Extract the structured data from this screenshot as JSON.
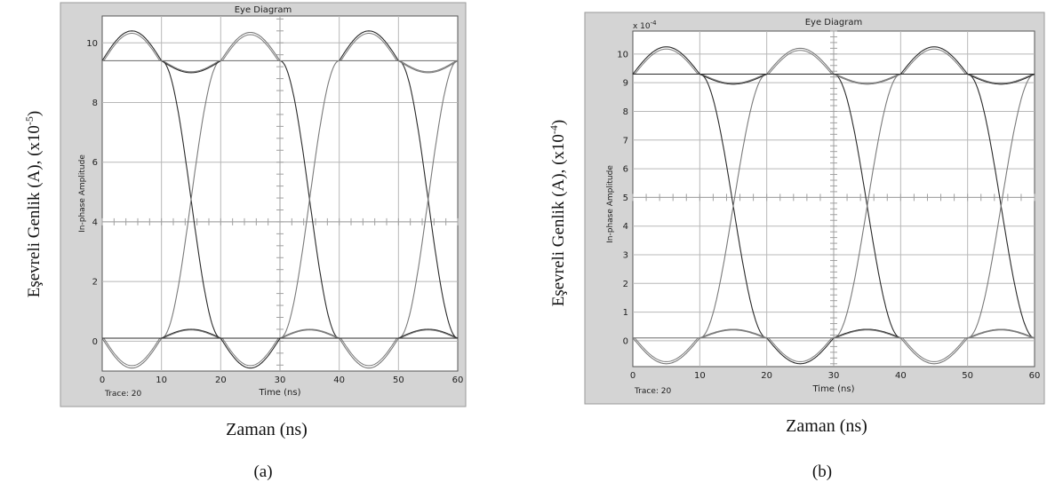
{
  "figure": {
    "panels": [
      {
        "caption": "(a)",
        "outer_ylabel": "Eşevreli Genlik (A), (x10",
        "outer_ylabel_exp": "-5",
        "outer_ylabel_tail": ")",
        "outer_xlabel": "Zaman (ns)"
      },
      {
        "caption": "(b)",
        "outer_ylabel": "Eşevreli Genlik (A), (x10",
        "outer_ylabel_exp": "-4",
        "outer_ylabel_tail": ")",
        "outer_xlabel": "Zaman (ns)"
      }
    ]
  },
  "colors": {
    "window_bg": "#d4d4d4",
    "plot_bg": "#ffffff",
    "grid": "#b8b8b8",
    "trace_dark": "#2a2a2a",
    "trace_light": "#7a7a7a"
  },
  "chart_data": [
    {
      "type": "line",
      "title": "Eye Diagram",
      "xlabel": "Time (ns)",
      "ylabel": "In-phase Amplitude",
      "trace_label": "Trace: 20",
      "multiplier_label": "",
      "multiplier_exp": "",
      "xlim": [
        0,
        60
      ],
      "ylim": [
        -1,
        10.9
      ],
      "xticks": [
        0,
        10,
        20,
        30,
        40,
        50,
        60
      ],
      "yticks": [
        0,
        2,
        4,
        6,
        8,
        10
      ],
      "grid": true,
      "center_axis_y": 4,
      "levels": {
        "high": 9.4,
        "low": 0.1,
        "overshoot_high": 10.4,
        "overshoot_low": -0.9,
        "crossing": 4.7
      },
      "bit_period_ns": 10,
      "crossings_ns": [
        15,
        35,
        55
      ],
      "series": [
        {
          "kind": "transition",
          "y_start": 9.4,
          "y_end": 0.1,
          "x_start": 10,
          "x_end": 20
        },
        {
          "kind": "transition",
          "y_start": 0.1,
          "y_end": 9.4,
          "x_start": 10,
          "x_end": 20
        },
        {
          "kind": "transition",
          "y_start": 9.4,
          "y_end": 0.1,
          "x_start": 30,
          "x_end": 40
        },
        {
          "kind": "transition",
          "y_start": 0.1,
          "y_end": 9.4,
          "x_start": 30,
          "x_end": 40
        },
        {
          "kind": "transition",
          "y_start": 9.4,
          "y_end": 0.1,
          "x_start": 50,
          "x_end": 60
        },
        {
          "kind": "transition",
          "y_start": 0.1,
          "y_end": 9.4,
          "x_start": 50,
          "x_end": 60
        },
        {
          "kind": "overshoot",
          "level": 9.4,
          "peak": 10.4,
          "x_start": 0,
          "x_end": 10
        },
        {
          "kind": "overshoot",
          "level": 9.4,
          "peak": 10.35,
          "x_start": 20,
          "x_end": 30
        },
        {
          "kind": "overshoot",
          "level": 9.4,
          "peak": 10.4,
          "x_start": 40,
          "x_end": 50
        },
        {
          "kind": "overshoot",
          "level": 0.1,
          "peak": -0.9,
          "x_start": 0,
          "x_end": 10
        },
        {
          "kind": "overshoot",
          "level": 0.1,
          "peak": -0.9,
          "x_start": 20,
          "x_end": 30
        },
        {
          "kind": "overshoot",
          "level": 0.1,
          "peak": -0.9,
          "x_start": 40,
          "x_end": 50
        },
        {
          "kind": "ripple",
          "level": 9.4,
          "peak": 9.0,
          "x_start": 10,
          "x_end": 20
        },
        {
          "kind": "ripple",
          "level": 9.4,
          "peak": 9.0,
          "x_start": 50,
          "x_end": 60
        },
        {
          "kind": "ripple",
          "level": 0.1,
          "peak": 0.4,
          "x_start": 10,
          "x_end": 20
        },
        {
          "kind": "ripple",
          "level": 0.1,
          "peak": 0.4,
          "x_start": 30,
          "x_end": 40
        },
        {
          "kind": "ripple",
          "level": 0.1,
          "peak": 0.4,
          "x_start": 50,
          "x_end": 60
        },
        {
          "kind": "flat",
          "level": 9.4,
          "x_start": 0,
          "x_end": 60
        },
        {
          "kind": "flat",
          "level": 0.1,
          "x_start": 0,
          "x_end": 60
        }
      ]
    },
    {
      "type": "line",
      "title": "Eye Diagram",
      "xlabel": "Time (ns)",
      "ylabel": "In-phase Amplitude",
      "trace_label": "Trace: 20",
      "multiplier_label": "x 10",
      "multiplier_exp": "-4",
      "xlim": [
        0,
        60
      ],
      "ylim": [
        -0.9,
        10.8
      ],
      "xticks": [
        0,
        10,
        20,
        30,
        40,
        50,
        60
      ],
      "yticks": [
        0,
        1,
        2,
        3,
        4,
        5,
        6,
        7,
        8,
        9,
        10
      ],
      "grid": true,
      "center_axis_y": 5,
      "levels": {
        "high": 9.3,
        "low": 0.1,
        "overshoot_high": 10.25,
        "overshoot_low": -0.8,
        "crossing": 4.7
      },
      "bit_period_ns": 10,
      "crossings_ns": [
        15,
        35,
        55
      ],
      "series": [
        {
          "kind": "transition",
          "y_start": 9.3,
          "y_end": 0.1,
          "x_start": 10,
          "x_end": 20
        },
        {
          "kind": "transition",
          "y_start": 0.1,
          "y_end": 9.3,
          "x_start": 10,
          "x_end": 20
        },
        {
          "kind": "transition",
          "y_start": 9.3,
          "y_end": 0.1,
          "x_start": 30,
          "x_end": 40
        },
        {
          "kind": "transition",
          "y_start": 0.1,
          "y_end": 9.3,
          "x_start": 30,
          "x_end": 40
        },
        {
          "kind": "transition",
          "y_start": 9.3,
          "y_end": 0.1,
          "x_start": 50,
          "x_end": 60
        },
        {
          "kind": "transition",
          "y_start": 0.1,
          "y_end": 9.3,
          "x_start": 50,
          "x_end": 60
        },
        {
          "kind": "overshoot",
          "level": 9.3,
          "peak": 10.25,
          "x_start": 0,
          "x_end": 10
        },
        {
          "kind": "overshoot",
          "level": 9.3,
          "peak": 10.2,
          "x_start": 20,
          "x_end": 30
        },
        {
          "kind": "overshoot",
          "level": 9.3,
          "peak": 10.25,
          "x_start": 40,
          "x_end": 50
        },
        {
          "kind": "overshoot",
          "level": 0.1,
          "peak": -0.8,
          "x_start": 0,
          "x_end": 10
        },
        {
          "kind": "overshoot",
          "level": 0.1,
          "peak": -0.8,
          "x_start": 20,
          "x_end": 30
        },
        {
          "kind": "overshoot",
          "level": 0.1,
          "peak": -0.8,
          "x_start": 40,
          "x_end": 50
        },
        {
          "kind": "ripple",
          "level": 9.3,
          "peak": 8.95,
          "x_start": 10,
          "x_end": 20
        },
        {
          "kind": "ripple",
          "level": 9.3,
          "peak": 8.95,
          "x_start": 30,
          "x_end": 40
        },
        {
          "kind": "ripple",
          "level": 9.3,
          "peak": 8.95,
          "x_start": 50,
          "x_end": 60
        },
        {
          "kind": "ripple",
          "level": 0.1,
          "peak": 0.4,
          "x_start": 10,
          "x_end": 20
        },
        {
          "kind": "ripple",
          "level": 0.1,
          "peak": 0.4,
          "x_start": 30,
          "x_end": 40
        },
        {
          "kind": "ripple",
          "level": 0.1,
          "peak": 0.4,
          "x_start": 50,
          "x_end": 60
        },
        {
          "kind": "flat",
          "level": 9.3,
          "x_start": 0,
          "x_end": 60
        },
        {
          "kind": "flat",
          "level": 0.1,
          "x_start": 0,
          "x_end": 60
        }
      ]
    }
  ]
}
